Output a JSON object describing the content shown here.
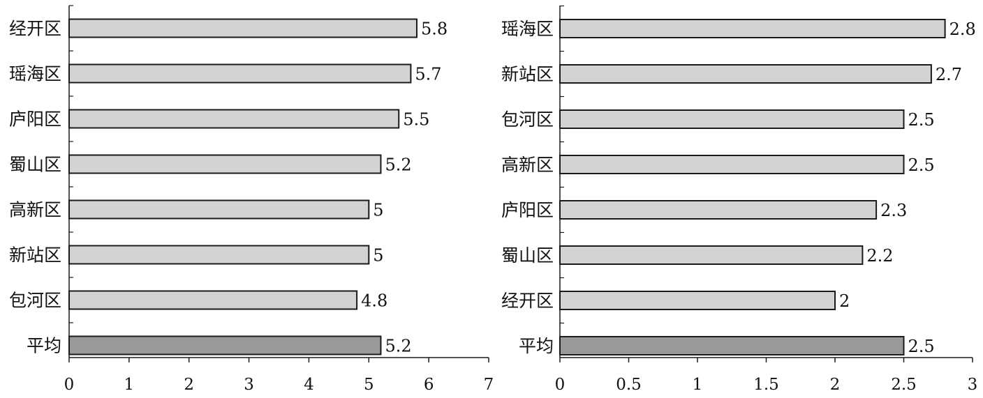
{
  "chart_data": [
    {
      "type": "bar",
      "orientation": "horizontal",
      "categories": [
        "经开区",
        "瑶海区",
        "庐阳区",
        "蜀山区",
        "高新区",
        "新站区",
        "包河区",
        "平均"
      ],
      "values": [
        5.8,
        5.7,
        5.5,
        5.2,
        5,
        5,
        4.8,
        5.2
      ],
      "value_labels": [
        "5.8",
        "5.7",
        "5.5",
        "5.2",
        "5",
        "5",
        "4.8",
        "5.2"
      ],
      "title": "",
      "xlabel": "",
      "ylabel": "",
      "xlim": [
        0,
        7
      ],
      "xticks": [
        "0",
        "1",
        "2",
        "3",
        "4",
        "5",
        "6",
        "7"
      ],
      "grid": false,
      "colors": {
        "bar": "#d3d3d3",
        "average": "#999999",
        "outline": "#1a1a1a"
      }
    },
    {
      "type": "bar",
      "orientation": "horizontal",
      "categories": [
        "瑶海区",
        "新站区",
        "包河区",
        "高新区",
        "庐阳区",
        "蜀山区",
        "经开区",
        "平均"
      ],
      "values": [
        2.8,
        2.7,
        2.5,
        2.5,
        2.3,
        2.2,
        2,
        2.5
      ],
      "value_labels": [
        "2.8",
        "2.7",
        "2.5",
        "2.5",
        "2.3",
        "2.2",
        "2",
        "2.5"
      ],
      "title": "",
      "xlabel": "",
      "ylabel": "",
      "xlim": [
        0,
        3
      ],
      "xticks": [
        "0",
        "0.5",
        "1",
        "1.5",
        "2",
        "2.5",
        "3"
      ],
      "grid": false,
      "colors": {
        "bar": "#d3d3d3",
        "average": "#999999",
        "outline": "#1a1a1a"
      }
    }
  ]
}
